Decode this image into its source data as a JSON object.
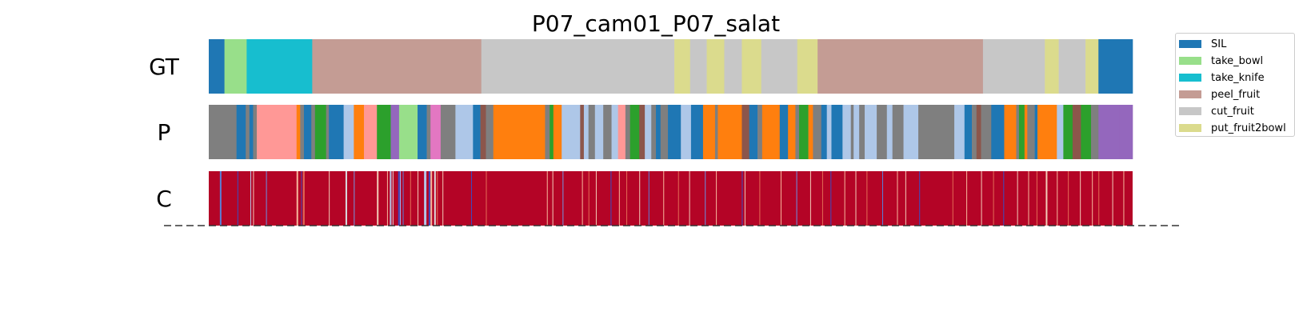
{
  "chart_data": {
    "type": "segmentation-timeline",
    "title": "P07_cam01_P07_salat",
    "x_domain": [
      0,
      1000
    ],
    "rows": [
      {
        "label": "GT",
        "segments": [
          [
            0,
            17,
            "#1f77b4"
          ],
          [
            17,
            41,
            "#98df8a"
          ],
          [
            41,
            112,
            "#17becf"
          ],
          [
            112,
            295,
            "#c49c94"
          ],
          [
            295,
            504,
            "#c7c7c7"
          ],
          [
            504,
            521,
            "#dbdb8d"
          ],
          [
            521,
            539,
            "#c7c7c7"
          ],
          [
            539,
            558,
            "#dbdb8d"
          ],
          [
            558,
            577,
            "#c7c7c7"
          ],
          [
            577,
            598,
            "#dbdb8d"
          ],
          [
            598,
            637,
            "#c7c7c7"
          ],
          [
            637,
            659,
            "#dbdb8d"
          ],
          [
            659,
            838,
            "#c49c94"
          ],
          [
            838,
            905,
            "#c7c7c7"
          ],
          [
            905,
            920,
            "#dbdb8d"
          ],
          [
            920,
            949,
            "#c7c7c7"
          ],
          [
            949,
            963,
            "#dbdb8d"
          ],
          [
            963,
            1000,
            "#1f77b4"
          ]
        ]
      },
      {
        "label": "P",
        "segments": [
          [
            0,
            30,
            "#7f7f7f"
          ],
          [
            30,
            40,
            "#1f77b4"
          ],
          [
            40,
            44,
            "#7f7f7f"
          ],
          [
            44,
            48,
            "#1f77b4"
          ],
          [
            48,
            52,
            "#7f7f7f"
          ],
          [
            52,
            95,
            "#ff9896"
          ],
          [
            95,
            99,
            "#ff7f0e"
          ],
          [
            99,
            103,
            "#7f7f7f"
          ],
          [
            103,
            111,
            "#1f77b4"
          ],
          [
            111,
            115,
            "#7f7f7f"
          ],
          [
            115,
            127,
            "#2ca02c"
          ],
          [
            127,
            130,
            "#7f7f7f"
          ],
          [
            130,
            146,
            "#1f77b4"
          ],
          [
            146,
            157,
            "#aec7e8"
          ],
          [
            157,
            168,
            "#ff7f0e"
          ],
          [
            168,
            182,
            "#ff9896"
          ],
          [
            182,
            197,
            "#2ca02c"
          ],
          [
            197,
            206,
            "#9467bd"
          ],
          [
            206,
            226,
            "#98df8a"
          ],
          [
            226,
            236,
            "#1f77b4"
          ],
          [
            236,
            240,
            "#7f7f7f"
          ],
          [
            240,
            251,
            "#e377c2"
          ],
          [
            251,
            267,
            "#7f7f7f"
          ],
          [
            267,
            286,
            "#aec7e8"
          ],
          [
            286,
            294,
            "#1f77b4"
          ],
          [
            294,
            300,
            "#8c564b"
          ],
          [
            300,
            308,
            "#7f7f7f"
          ],
          [
            308,
            364,
            "#ff7f0e"
          ],
          [
            364,
            369,
            "#7f7f7f"
          ],
          [
            369,
            373,
            "#2ca02c"
          ],
          [
            373,
            382,
            "#ff7f0e"
          ],
          [
            382,
            402,
            "#aec7e8"
          ],
          [
            402,
            406,
            "#8c564b"
          ],
          [
            406,
            411,
            "#aec7e8"
          ],
          [
            411,
            418,
            "#7f7f7f"
          ],
          [
            418,
            427,
            "#aec7e8"
          ],
          [
            427,
            436,
            "#7f7f7f"
          ],
          [
            436,
            443,
            "#aec7e8"
          ],
          [
            443,
            451,
            "#ff9896"
          ],
          [
            451,
            456,
            "#7f7f7f"
          ],
          [
            456,
            466,
            "#2ca02c"
          ],
          [
            466,
            472,
            "#8c564b"
          ],
          [
            472,
            479,
            "#aec7e8"
          ],
          [
            479,
            484,
            "#7f7f7f"
          ],
          [
            484,
            489,
            "#1f77b4"
          ],
          [
            489,
            497,
            "#7f7f7f"
          ],
          [
            497,
            511,
            "#1f77b4"
          ],
          [
            511,
            522,
            "#aec7e8"
          ],
          [
            522,
            535,
            "#1f77b4"
          ],
          [
            535,
            548,
            "#ff7f0e"
          ],
          [
            548,
            551,
            "#7f7f7f"
          ],
          [
            551,
            577,
            "#ff7f0e"
          ],
          [
            577,
            585,
            "#8c564b"
          ],
          [
            585,
            594,
            "#1f77b4"
          ],
          [
            594,
            599,
            "#7f7f7f"
          ],
          [
            599,
            618,
            "#ff7f0e"
          ],
          [
            618,
            627,
            "#1f77b4"
          ],
          [
            627,
            635,
            "#ff7f0e"
          ],
          [
            635,
            639,
            "#7f7f7f"
          ],
          [
            639,
            649,
            "#2ca02c"
          ],
          [
            649,
            654,
            "#ff7f0e"
          ],
          [
            654,
            663,
            "#7f7f7f"
          ],
          [
            663,
            669,
            "#1f77b4"
          ],
          [
            669,
            674,
            "#aec7e8"
          ],
          [
            674,
            686,
            "#1f77b4"
          ],
          [
            686,
            695,
            "#aec7e8"
          ],
          [
            695,
            698,
            "#7f7f7f"
          ],
          [
            698,
            704,
            "#aec7e8"
          ],
          [
            704,
            710,
            "#7f7f7f"
          ],
          [
            710,
            723,
            "#aec7e8"
          ],
          [
            723,
            734,
            "#7f7f7f"
          ],
          [
            734,
            740,
            "#aec7e8"
          ],
          [
            740,
            752,
            "#7f7f7f"
          ],
          [
            752,
            768,
            "#aec7e8"
          ],
          [
            768,
            807,
            "#7f7f7f"
          ],
          [
            807,
            818,
            "#aec7e8"
          ],
          [
            818,
            826,
            "#1f77b4"
          ],
          [
            826,
            831,
            "#7f7f7f"
          ],
          [
            831,
            836,
            "#8c564b"
          ],
          [
            836,
            847,
            "#7f7f7f"
          ],
          [
            847,
            861,
            "#1f77b4"
          ],
          [
            861,
            874,
            "#ff7f0e"
          ],
          [
            874,
            877,
            "#7f7f7f"
          ],
          [
            877,
            883,
            "#2ca02c"
          ],
          [
            883,
            886,
            "#ff7f0e"
          ],
          [
            886,
            894,
            "#7f7f7f"
          ],
          [
            894,
            897,
            "#1f77b4"
          ],
          [
            897,
            918,
            "#ff7f0e"
          ],
          [
            918,
            925,
            "#aec7e8"
          ],
          [
            925,
            935,
            "#2ca02c"
          ],
          [
            935,
            944,
            "#8c564b"
          ],
          [
            944,
            955,
            "#2ca02c"
          ],
          [
            955,
            963,
            "#7f7f7f"
          ],
          [
            963,
            986,
            "#9467bd"
          ],
          [
            986,
            1000,
            "#9467bd"
          ]
        ]
      },
      {
        "label": "C",
        "base_color": "#b40426",
        "lines": [
          [
            12,
            "#5a7fd8",
            2
          ],
          [
            31,
            "#3b4cc0",
            1
          ],
          [
            45,
            "#b5c5e8",
            1
          ],
          [
            48,
            "#f2cbb7",
            1
          ],
          [
            62,
            "#6b8ee0",
            1
          ],
          [
            95,
            "#f7b89c",
            2
          ],
          [
            100,
            "#3b4cc0",
            1
          ],
          [
            102,
            "#e36c55",
            2
          ],
          [
            130,
            "#f2cbb7",
            1
          ],
          [
            148,
            "#d8dce2",
            2
          ],
          [
            157,
            "#7396e2",
            1
          ],
          [
            182,
            "#f2cbb7",
            2
          ],
          [
            193,
            "#f7b89c",
            1
          ],
          [
            196,
            "#b5c5e8",
            2
          ],
          [
            199,
            "#e0dbd8",
            1
          ],
          [
            205,
            "#3b4cc0",
            2
          ],
          [
            207,
            "#9bbcff",
            1
          ],
          [
            210,
            "#5a7fd8",
            1
          ],
          [
            218,
            "#e36c55",
            1
          ],
          [
            226,
            "#f2cbb7",
            1
          ],
          [
            233,
            "#b5c5e8",
            3
          ],
          [
            238,
            "#3b4cc0",
            2
          ],
          [
            240,
            "#f7b89c",
            2
          ],
          [
            244,
            "#dddcdc",
            2
          ],
          [
            247,
            "#e36c55",
            1
          ],
          [
            253,
            "#f2cbb7",
            1
          ],
          [
            284,
            "#3b4cc0",
            1
          ],
          [
            300,
            "#e36c55",
            1
          ],
          [
            366,
            "#f7b89c",
            1
          ],
          [
            372,
            "#f2cbb7",
            1
          ],
          [
            383,
            "#7396e2",
            1
          ],
          [
            404,
            "#f7b89c",
            1
          ],
          [
            411,
            "#e36c55",
            1
          ],
          [
            419,
            "#f2cbb7",
            1
          ],
          [
            435,
            "#3b4cc0",
            1
          ],
          [
            444,
            "#f7b89c",
            1
          ],
          [
            452,
            "#e36c55",
            1
          ],
          [
            466,
            "#f2cbb7",
            1
          ],
          [
            476,
            "#5a7fd8",
            1
          ],
          [
            492,
            "#f7b89c",
            1
          ],
          [
            508,
            "#e36c55",
            1
          ],
          [
            520,
            "#f2cbb7",
            1
          ],
          [
            537,
            "#6b8ee0",
            1
          ],
          [
            549,
            "#f7b89c",
            1
          ],
          [
            577,
            "#3b4cc0",
            1
          ],
          [
            580,
            "#f2cbb7",
            1
          ],
          [
            596,
            "#e36c55",
            1
          ],
          [
            619,
            "#f7b89c",
            1
          ],
          [
            636,
            "#6b8ee0",
            1
          ],
          [
            651,
            "#f2cbb7",
            1
          ],
          [
            664,
            "#e36c55",
            1
          ],
          [
            673,
            "#3b4cc0",
            1
          ],
          [
            688,
            "#f7b89c",
            1
          ],
          [
            700,
            "#f2cbb7",
            1
          ],
          [
            712,
            "#e36c55",
            1
          ],
          [
            729,
            "#5a7fd8",
            1
          ],
          [
            745,
            "#f7b89c",
            1
          ],
          [
            754,
            "#f2cbb7",
            1
          ],
          [
            769,
            "#3b4cc0",
            1
          ],
          [
            805,
            "#e36c55",
            1
          ],
          [
            820,
            "#f7b89c",
            1
          ],
          [
            836,
            "#f2cbb7",
            1
          ],
          [
            849,
            "#e36c55",
            1
          ],
          [
            860,
            "#3b4cc0",
            1
          ],
          [
            875,
            "#f2cbb7",
            1
          ],
          [
            887,
            "#f7b89c",
            1
          ],
          [
            896,
            "#e36c55",
            1
          ],
          [
            906,
            "#f2cbb7",
            2
          ],
          [
            918,
            "#f7b89c",
            1
          ],
          [
            930,
            "#e36c55",
            1
          ],
          [
            943,
            "#f2cbb7",
            1
          ],
          [
            956,
            "#f7b89c",
            1
          ],
          [
            963,
            "#e36c55",
            1
          ],
          [
            978,
            "#f2cbb7",
            1
          ],
          [
            990,
            "#f7b89c",
            1
          ]
        ]
      }
    ],
    "legend": [
      {
        "label": "SIL",
        "color": "#1f77b4"
      },
      {
        "label": "take_bowl",
        "color": "#98df8a"
      },
      {
        "label": "take_knife",
        "color": "#17becf"
      },
      {
        "label": "peel_fruit",
        "color": "#c49c94"
      },
      {
        "label": "cut_fruit",
        "color": "#c7c7c7"
      },
      {
        "label": "put_fruit2bowl",
        "color": "#dbdb8d"
      }
    ],
    "legend_placement": "upper-right-outside",
    "baseline": "dashed"
  }
}
